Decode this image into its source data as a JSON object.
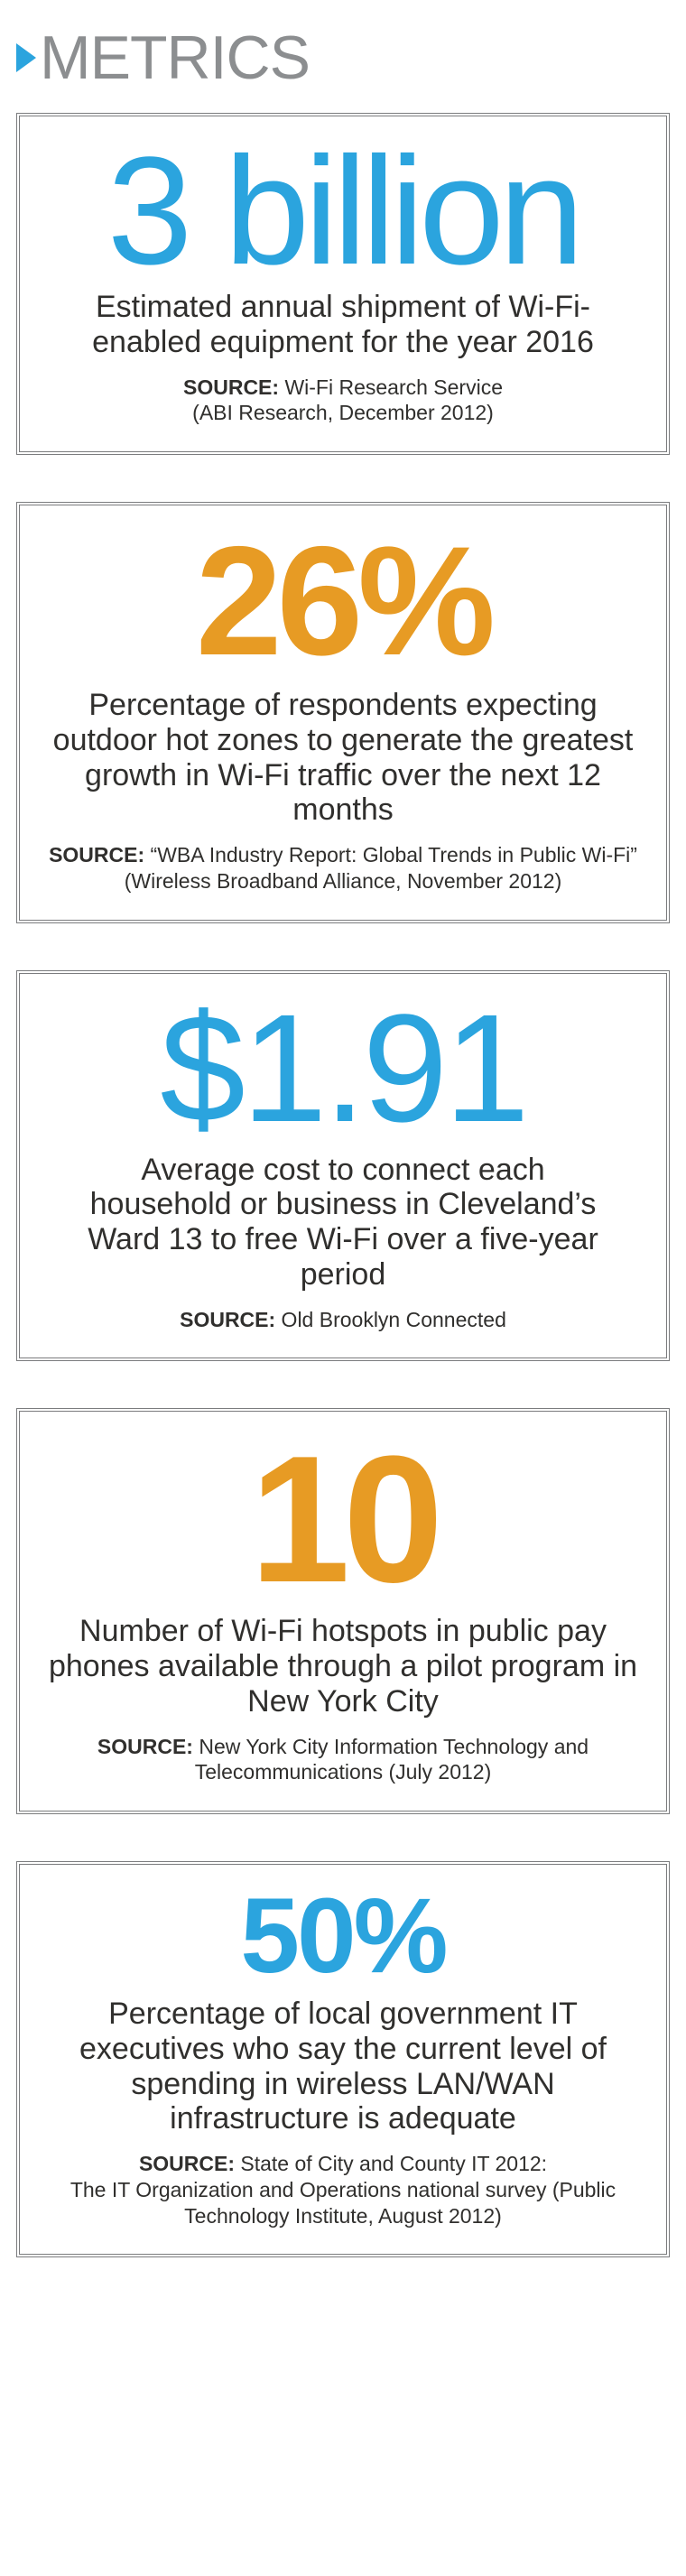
{
  "header": {
    "title": "METRICS"
  },
  "colors": {
    "blue": "#2ba4de",
    "orange": "#e79b24",
    "gray_text": "#8c8e90",
    "body_text": "#302f2d",
    "border": "#7b7c7e",
    "background": "#ffffff"
  },
  "cards": [
    {
      "stat": "3 billion",
      "stat_color": "#2ba4de",
      "stat_weight": 300,
      "stat_fontsize": 170,
      "desc": "Estimated annual shipment of Wi-Fi-enabled equipment for the year 2016",
      "source_label": "SOURCE:",
      "source_line1": " Wi-Fi Research Service",
      "source_line2": "(ABI Research, December 2012)"
    },
    {
      "stat": "26%",
      "stat_color": "#e79b24",
      "stat_weight": 800,
      "stat_fontsize": 172,
      "desc": "Percentage of respondents expecting outdoor hot zones to generate the greatest growth in Wi-Fi traffic over the next 12 months",
      "source_label": "SOURCE:",
      "source_line1": " “WBA Industry Report: Global Trends in Public Wi-Fi”",
      "source_line2": "(Wireless Broadband Alliance, November 2012)"
    },
    {
      "stat": "$1.91",
      "stat_color": "#2ba4de",
      "stat_weight": 400,
      "stat_fontsize": 170,
      "desc": "Average cost to connect each household or business in Cleveland’s Ward 13 to free Wi-Fi over a five-year period",
      "source_label": "SOURCE:",
      "source_line1": " Old Brooklyn Connected",
      "source_line2": ""
    },
    {
      "stat": "10",
      "stat_color": "#e79b24",
      "stat_weight": 800,
      "stat_fontsize": 200,
      "desc": "Number of Wi-Fi hotspots in public pay phones available through a pilot program in New York City",
      "source_label": "SOURCE:",
      "source_line1": " New York City Information Technology and Telecommunications (July 2012)",
      "source_line2": ""
    },
    {
      "stat": "50%",
      "stat_color": "#2ba4de",
      "stat_weight": 800,
      "stat_fontsize": 118,
      "desc": "Percentage of local government IT executives who say the current level of spending in wireless LAN/WAN infrastructure is adequate",
      "source_label": "SOURCE:",
      "source_line1": " State of City and County IT 2012:",
      "source_line2": "The IT Organization and Operations national survey (Public Technology Institute, August 2012)"
    }
  ]
}
